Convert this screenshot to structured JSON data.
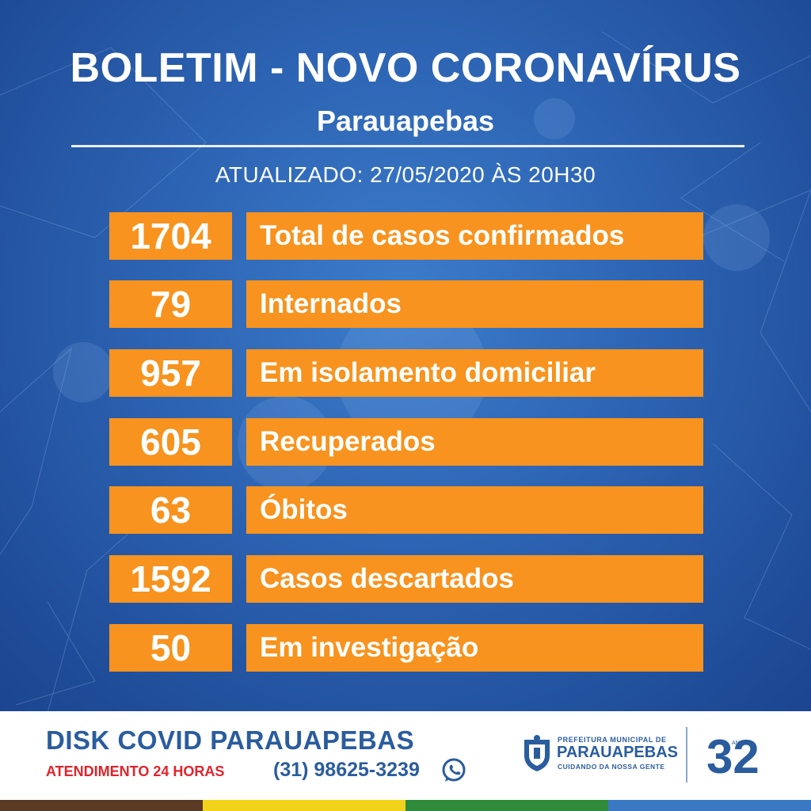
{
  "header": {
    "title": "BOLETIM - NOVO CORONAVÍRUS",
    "subtitle": "Parauapebas",
    "updated": "ATUALIZADO: 27/05/2020 ÀS 20H30"
  },
  "stats": [
    {
      "value": "1704",
      "label": "Total de casos confirmados"
    },
    {
      "value": "79",
      "label": "Internados"
    },
    {
      "value": "957",
      "label": "Em isolamento domiciliar"
    },
    {
      "value": "605",
      "label": "Recuperados"
    },
    {
      "value": "63",
      "label": "Óbitos"
    },
    {
      "value": "1592",
      "label": "Casos descartados"
    },
    {
      "value": "50",
      "label": "Em investigação"
    }
  ],
  "footer": {
    "disk": "DISK COVID PARAUAPEBAS",
    "attendance": "ATENDIMENTO 24 HORAS",
    "phone": "(31) 98625-3239",
    "phone_icon": "whatsapp-icon",
    "logo_top": "PREFEITURA MUNICIPAL DE",
    "logo_name": "PARAUAPEBAS",
    "logo_tagline": "CUIDANDO DA NOSSA GENTE",
    "anniversary": "32",
    "anniversary_unit": "ANOS"
  },
  "colors": {
    "background": "#2c63b2",
    "box": "#f7931e",
    "brand_blue": "#2a5c9e",
    "attendance_red": "#e0242c",
    "strip": [
      "#5a3a24",
      "#f2d21a",
      "#2f8a3a",
      "#3a78c4"
    ]
  }
}
